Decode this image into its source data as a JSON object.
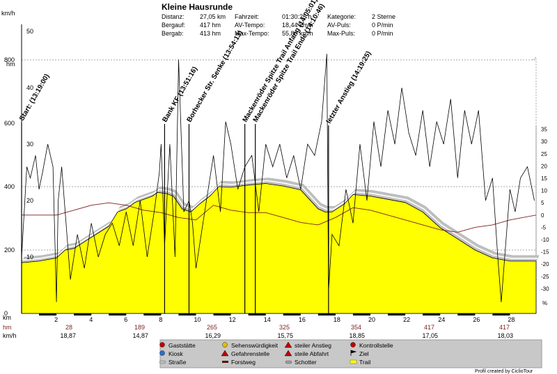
{
  "header": {
    "title": "Kleine Hausrunde",
    "col1": [
      {
        "label": "Distanz:",
        "value": "27,05 km"
      },
      {
        "label": "Bergauf:",
        "value": "417 hm"
      },
      {
        "label": "Bergab:",
        "value": "413 hm"
      }
    ],
    "col2": [
      {
        "label": "Fahrzeit:",
        "value": "01:30:25 h"
      },
      {
        "label": "AV-Tempo:",
        "value": "18,44 km/h"
      },
      {
        "label": "Max-Tempo:",
        "value": "55,80 km/h"
      }
    ],
    "col3": [
      {
        "label": "Kategorie:",
        "value": "2 Sterne"
      },
      {
        "label": "AV-Puls:",
        "value": "0 P/min"
      },
      {
        "label": "Max-Puls:",
        "value": "0 P/min"
      }
    ]
  },
  "axes": {
    "speed_unit": "km/h",
    "alt_unit": "hm",
    "slope_unit": "%",
    "speed_ticks": [
      "50",
      "40",
      "30",
      "20",
      "10"
    ],
    "alt_ticks": [
      "800",
      "600",
      "400",
      "200",
      "0"
    ],
    "slope_ticks": [
      "35",
      "30",
      "25",
      "20",
      "15",
      "10",
      "5",
      "0",
      "-5",
      "-10",
      "-15",
      "-20",
      "-25",
      "-30"
    ],
    "km_label": "km",
    "km_ticks": [
      "2",
      "4",
      "6",
      "8",
      "10",
      "12",
      "14",
      "16",
      "18",
      "20",
      "22",
      "24",
      "26",
      "28"
    ]
  },
  "stats_rows": {
    "hm_label": "hm",
    "kmh_label": "km/h",
    "hm_values": [
      "28",
      "189",
      "265",
      "325",
      "354",
      "417",
      "417"
    ],
    "kmh_values": [
      "18,87",
      "14,87",
      "16,29",
      "15,75",
      "18,85",
      "17,05",
      "18,03"
    ]
  },
  "annotations": [
    "Start: (13:19:00)",
    "Bank KF (13:51:16)",
    "Borhecker Str. Senke (13:54:13)",
    "Mackenröder Spitze Trail Anfang (14:05:01)",
    "Mackenröder Spitze Trail Ende (14:10:46)",
    "letzter Anstieg (14:19:25)"
  ],
  "legend": [
    {
      "icon": "gaststaette-icon",
      "label": "Gaststätte",
      "color": "#c00000"
    },
    {
      "icon": "kiosk-icon",
      "label": "Kiosk",
      "color": "#2a6fc9"
    },
    {
      "icon": "strasse-icon",
      "label": "Straße",
      "color": "#bdbdbd"
    },
    {
      "icon": "sehenswuerdigkeit-icon",
      "label": "Sehenswürdigkeit",
      "color": "#e0c000"
    },
    {
      "icon": "gefahrenstelle-icon",
      "label": "Gefahrenstelle",
      "color": "#c00000"
    },
    {
      "icon": "forstweg-icon",
      "label": "Forstweg",
      "color": "#5a1010"
    },
    {
      "icon": "steiler-anstieg-icon",
      "label": "steiler Anstieg",
      "color": "#c00000"
    },
    {
      "icon": "steile-abfahrt-icon",
      "label": "steile Abfahrt",
      "color": "#c00000"
    },
    {
      "icon": "schotter-icon",
      "label": "Schotter",
      "color": "#9a9a9a"
    },
    {
      "icon": "kontrollstelle-icon",
      "label": "Kontrollstelle",
      "color": "#c00000"
    },
    {
      "icon": "ziel-icon",
      "label": "Ziel",
      "color": "#000000"
    },
    {
      "icon": "trail-icon",
      "label": "Trail",
      "color": "#ffff00"
    }
  ],
  "credit": "Profil created by CiclioTour",
  "colors": {
    "trail_fill": "#ffff00",
    "road_band": "#c0c0c0",
    "slope_line": "#7a1f1f",
    "speed_line": "#000000",
    "stats_red": "#7a1f1f",
    "legend_bg": "#c8c8c8"
  },
  "chart_data": {
    "type": "area",
    "title": "Kleine Hausrunde",
    "xlabel": "km",
    "xlim": [
      0,
      29.5
    ],
    "altitude": {
      "name": "hm",
      "ylim": [
        0,
        800
      ],
      "x": [
        0,
        1,
        2,
        2.5,
        3,
        4,
        5,
        5.5,
        6,
        6.5,
        7,
        7.5,
        7.8,
        8.3,
        8.7,
        9.2,
        9.7,
        10.2,
        10.8,
        11.3,
        12,
        13,
        14,
        15,
        16,
        16.5,
        17,
        17.4,
        17.8,
        18.5,
        19,
        20,
        21,
        22,
        23,
        24,
        25,
        26,
        27,
        28,
        29.5
      ],
      "y": [
        160,
        165,
        175,
        200,
        205,
        240,
        275,
        320,
        330,
        350,
        360,
        370,
        382,
        378,
        370,
        330,
        320,
        345,
        370,
        400,
        398,
        405,
        410,
        402,
        390,
        360,
        330,
        320,
        320,
        345,
        375,
        370,
        360,
        350,
        320,
        270,
        235,
        200,
        175,
        165,
        165
      ]
    },
    "speed": {
      "name": "km/h",
      "ylim": [
        0,
        50
      ],
      "x": [
        0,
        0.3,
        0.5,
        0.8,
        1,
        1.2,
        1.5,
        1.8,
        2,
        2.1,
        2.3,
        2.5,
        2.8,
        3.2,
        3.6,
        4,
        4.4,
        4.8,
        5.2,
        5.6,
        6,
        6.4,
        6.8,
        7.2,
        7.6,
        7.9,
        8,
        8.2,
        8.5,
        8.8,
        9,
        9.3,
        9.6,
        9.8,
        10,
        10.3,
        10.6,
        11,
        11.4,
        11.7,
        12,
        12.4,
        12.8,
        13.2,
        13.6,
        14,
        14.4,
        14.8,
        15.2,
        15.6,
        16,
        16.4,
        16.8,
        17.2,
        17.5,
        17.6,
        17.8,
        18.2,
        18.6,
        19,
        19.4,
        19.8,
        20.2,
        20.6,
        21,
        21.4,
        21.8,
        22.2,
        22.6,
        23,
        23.4,
        23.8,
        24.2,
        24.6,
        25,
        25.4,
        25.8,
        26.2,
        26.6,
        27,
        27.3,
        27.5,
        27.8,
        28,
        28.3,
        28.6,
        29,
        29.4
      ],
      "y": [
        10,
        26,
        24,
        28,
        22,
        25,
        30,
        26,
        2,
        20,
        26,
        18,
        6,
        14,
        8,
        16,
        10,
        14,
        16,
        12,
        18,
        12,
        20,
        10,
        18,
        25,
        30,
        12,
        30,
        10,
        45,
        18,
        20,
        16,
        8,
        14,
        20,
        28,
        18,
        34,
        30,
        22,
        26,
        28,
        18,
        30,
        26,
        30,
        24,
        28,
        22,
        30,
        28,
        34,
        46,
        4,
        14,
        12,
        22,
        16,
        30,
        20,
        34,
        26,
        36,
        30,
        40,
        32,
        28,
        36,
        26,
        34,
        30,
        38,
        24,
        36,
        30,
        36,
        20,
        24,
        10,
        2,
        14,
        22,
        18,
        24,
        26,
        20
      ]
    },
    "slope": {
      "name": "%",
      "ylim": [
        -35,
        40
      ],
      "x": [
        0,
        1,
        2,
        3,
        4,
        5,
        6,
        7,
        8,
        9,
        10,
        11,
        12,
        13,
        14,
        15,
        16,
        17,
        18,
        19,
        20,
        21,
        22,
        23,
        24,
        25,
        26,
        27,
        28,
        29.5
      ],
      "y": [
        0,
        0,
        0,
        2,
        4,
        5,
        4,
        2,
        1,
        -1,
        -2,
        4,
        2,
        1,
        1,
        -1,
        -3,
        -4,
        -1,
        3,
        2,
        0,
        -2,
        -4,
        -6,
        -7,
        -5,
        -4,
        -2,
        0
      ]
    }
  }
}
